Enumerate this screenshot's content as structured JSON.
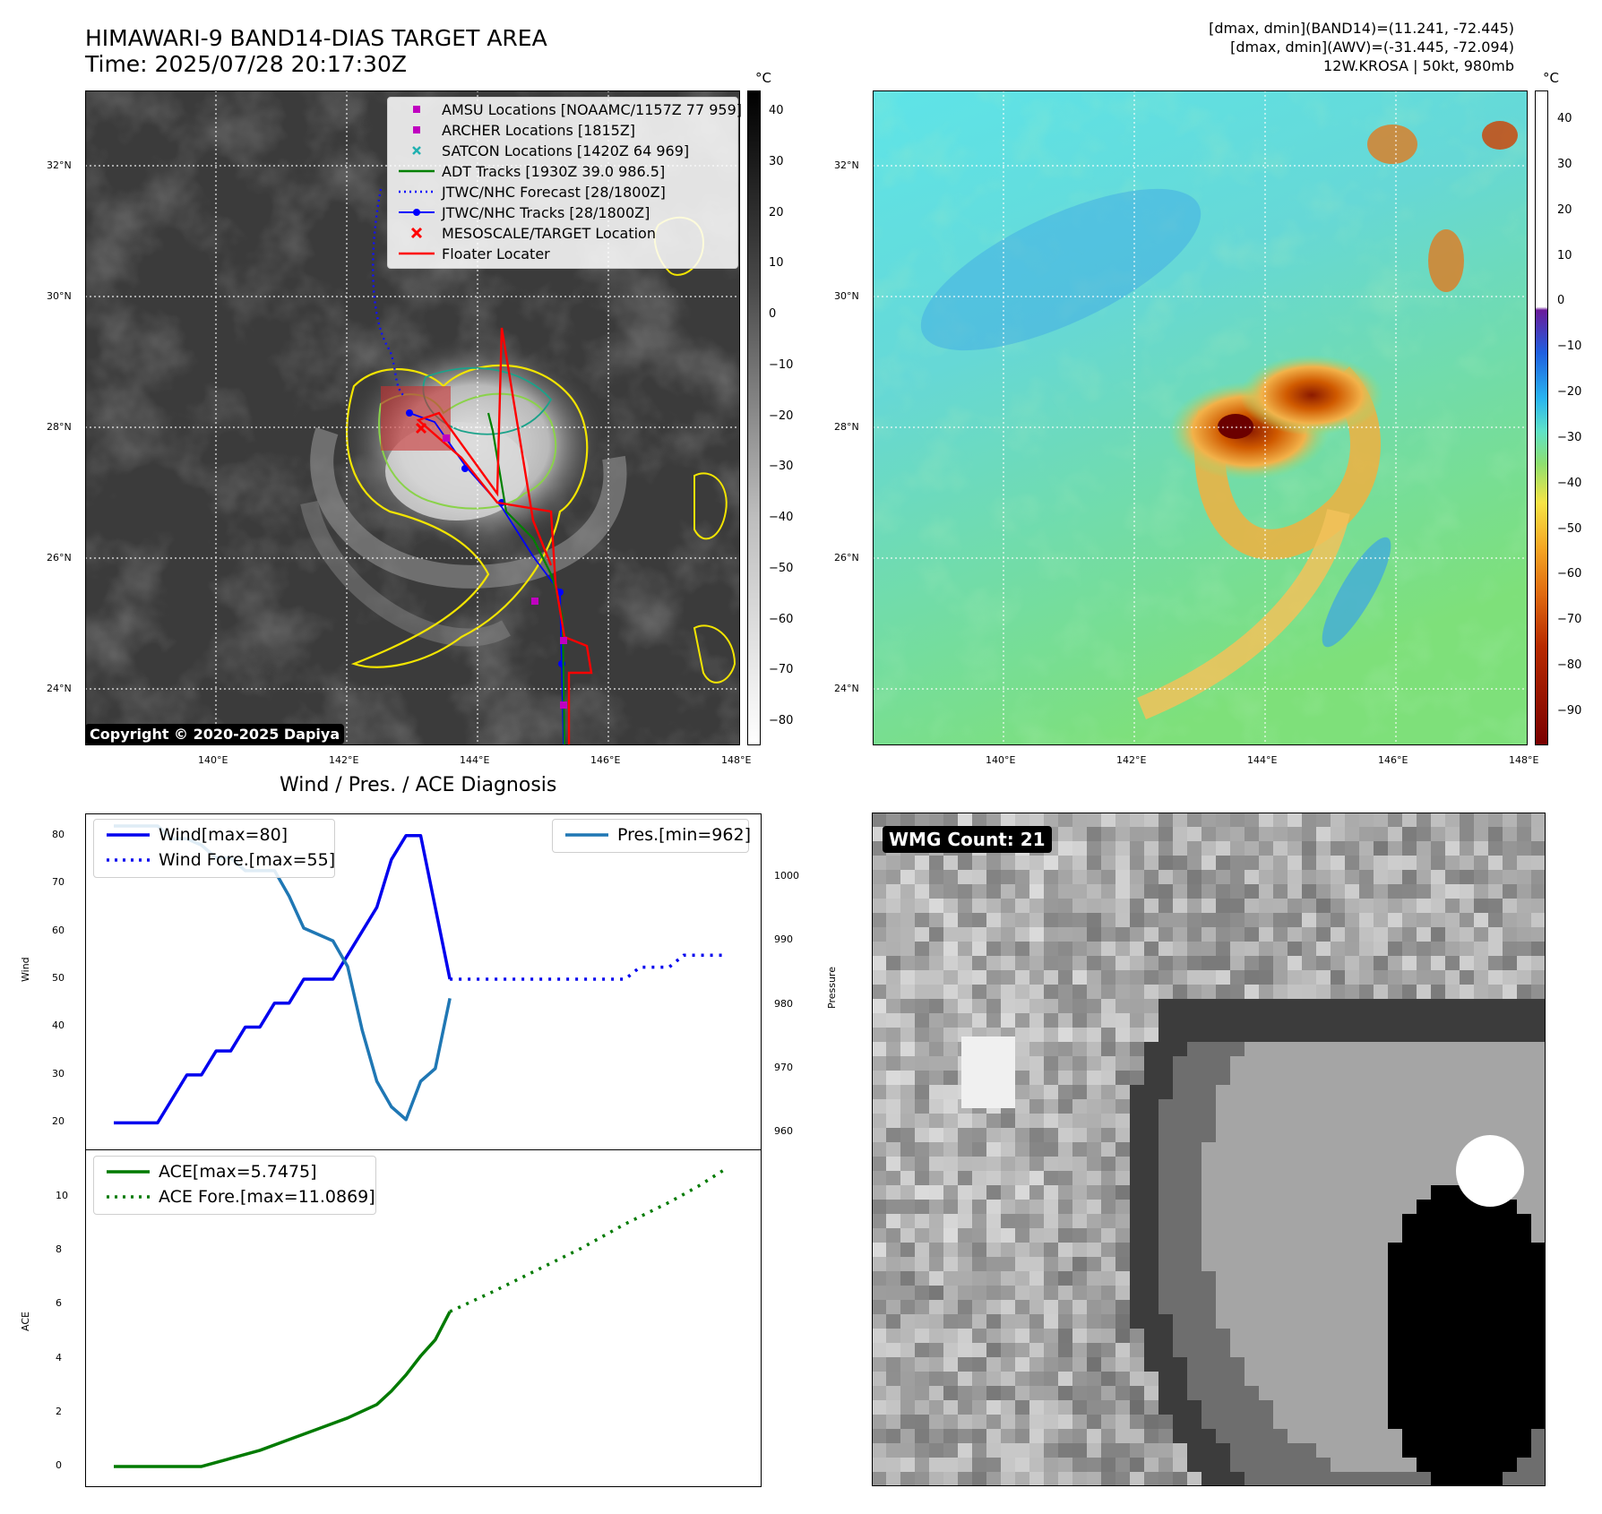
{
  "header": {
    "title_line1": "HIMAWARI-9 BAND14-DIAS TARGET AREA",
    "title_line2": "Time: 2025/07/28 20:17:30Z",
    "stats_line1": "[dmax, dmin](BAND14)=(11.241, -72.445)",
    "stats_line2": "[dmax, dmin](AWV)=(-31.445, -72.094)",
    "stats_line3": "12W.KROSA | 50kt, 980mb"
  },
  "map_axes": {
    "lat_labels": [
      "32°N",
      "30°N",
      "28°N",
      "26°N",
      "24°N"
    ],
    "lon_labels": [
      "140°E",
      "142°E",
      "144°E",
      "146°E",
      "148°E"
    ]
  },
  "panel_ir": {
    "colorbar_unit": "°C",
    "colorbar_ticks": [
      "40",
      "30",
      "20",
      "10",
      "0",
      "−10",
      "−20",
      "−30",
      "−40",
      "−50",
      "−60",
      "−70",
      "−80"
    ],
    "legend": [
      {
        "label": "AMSU Locations [NOAAMC/1157Z 77 959]",
        "symbol": "square",
        "color": "#c000c0"
      },
      {
        "label": "ARCHER Locations [1815Z]",
        "symbol": "square",
        "color": "#c000c0"
      },
      {
        "label": "SATCON Locations [1420Z 64 969]",
        "symbol": "x",
        "color": "#20b0b0"
      },
      {
        "label": "ADT Tracks [1930Z 39.0 986.5]",
        "symbol": "line",
        "color": "#008000"
      },
      {
        "label": "JTWC/NHC Forecast [28/1800Z]",
        "symbol": "dotted",
        "color": "#0000ff"
      },
      {
        "label": "JTWC/NHC Tracks [28/1800Z]",
        "symbol": "line-dot",
        "color": "#0000ff"
      },
      {
        "label": "MESOSCALE/TARGET Location",
        "symbol": "x",
        "color": "#ff0000"
      },
      {
        "label": "Floater Locater",
        "symbol": "line",
        "color": "#ff0000"
      }
    ],
    "copyright": "Copyright © 2020-2025 Dapiya"
  },
  "panel_wv": {
    "colorbar_unit": "°C",
    "colorbar_ticks": [
      "40",
      "30",
      "20",
      "10",
      "0",
      "−10",
      "−20",
      "−30",
      "−40",
      "−50",
      "−60",
      "−70",
      "−80",
      "−90"
    ]
  },
  "diagnosis": {
    "title": "Wind / Pres. / ACE Diagnosis",
    "wind_ylabel": "Wind",
    "pres_ylabel": "Pressure",
    "ace_ylabel": "ACE",
    "wind_ticks": [
      "80",
      "70",
      "60",
      "50",
      "40",
      "30",
      "20"
    ],
    "pres_ticks": [
      "1000",
      "990",
      "980",
      "970",
      "960"
    ],
    "ace_ticks": [
      "10",
      "8",
      "6",
      "4",
      "2",
      "0"
    ],
    "legend_wind": "Wind[max=80]",
    "legend_wind_fore": "Wind Fore.[max=55]",
    "legend_pres": "Pres.[min=962]",
    "legend_ace": "ACE[max=5.7475]",
    "legend_ace_fore": "ACE Fore.[max=11.0869]",
    "colors": {
      "wind": "#0000ee",
      "pres": "#1f77b4",
      "ace": "#007a00"
    }
  },
  "wmg": {
    "label": "WMG Count: 21"
  },
  "chart_data": [
    {
      "type": "line",
      "title": "Wind / Pres. / ACE Diagnosis",
      "ylabel": "Wind",
      "ylim": [
        18,
        82
      ],
      "y2label": "Pressure",
      "y2lim": [
        960,
        1008
      ],
      "series": [
        {
          "name": "Wind[max=80]",
          "axis": "left",
          "x": [
            0,
            3,
            5,
            6,
            7,
            8,
            9,
            10,
            11,
            12,
            13,
            15,
            16,
            17,
            18,
            19,
            20,
            21,
            23
          ],
          "values": [
            20,
            20,
            30,
            30,
            35,
            35,
            40,
            40,
            45,
            45,
            50,
            50,
            55,
            60,
            65,
            75,
            80,
            80,
            50
          ]
        },
        {
          "name": "Wind Fore.[max=55]",
          "axis": "left",
          "x": [
            23,
            35,
            36,
            38,
            39,
            42
          ],
          "values": [
            50,
            50,
            52.5,
            52.5,
            55,
            55
          ]
        },
        {
          "name": "Pres.[min=962]",
          "axis": "right",
          "x": [
            0,
            3,
            4,
            5,
            6,
            7,
            8,
            9,
            10,
            11,
            12,
            13,
            14,
            15,
            16,
            17,
            18,
            19,
            20,
            21,
            22,
            23
          ],
          "values": [
            1008,
            1008,
            1006,
            1006,
            1005,
            1003,
            1003,
            1001,
            1001,
            1001,
            997,
            992,
            991,
            990,
            986,
            976,
            968,
            964,
            962,
            968,
            970,
            981
          ]
        }
      ]
    },
    {
      "type": "line",
      "ylabel": "ACE",
      "ylim": [
        -0.3,
        11.5
      ],
      "series": [
        {
          "name": "ACE[max=5.7475]",
          "x": [
            0,
            3,
            6,
            8,
            10,
            12,
            14,
            16,
            18,
            19,
            20,
            21,
            22,
            23
          ],
          "values": [
            0,
            0,
            0,
            0.3,
            0.6,
            1.0,
            1.4,
            1.8,
            2.3,
            2.8,
            3.4,
            4.1,
            4.7,
            5.7475
          ]
        },
        {
          "name": "ACE Fore.[max=11.0869]",
          "x": [
            23,
            26,
            29,
            32,
            35,
            38,
            40,
            42
          ],
          "values": [
            5.7475,
            6.5,
            7.3,
            8.1,
            9.0,
            9.8,
            10.4,
            11.0869
          ]
        }
      ]
    }
  ]
}
